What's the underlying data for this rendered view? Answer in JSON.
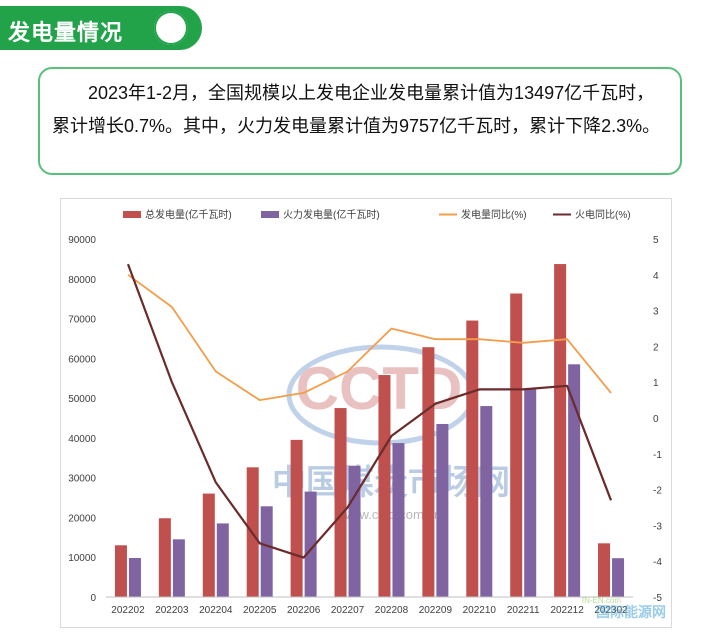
{
  "header": {
    "title": "发电量情况"
  },
  "summary": {
    "text": "2023年1-2月，全国规模以上发电企业发电量累计值为13497亿千瓦时，累计增长0.7%。其中，火力发电量累计值为9757亿千瓦时，累计下降2.3%。"
  },
  "watermark": {
    "logo": "CCTD",
    "cn": "中国煤炭市场网",
    "url": "www.cctd.com.cn",
    "corner": "国际能源网",
    "corner_en": "IN-EN.com"
  },
  "colors": {
    "total": "#c0504d",
    "thermal": "#8064a2",
    "gen_yoy": "#f29d4b",
    "thermal_yoy": "#6b2b2b",
    "green": "#22a34a"
  },
  "chart_data": {
    "type": "bar",
    "categories": [
      "202202",
      "202203",
      "202204",
      "202205",
      "202206",
      "202207",
      "202208",
      "202209",
      "202210",
      "202211",
      "202212",
      "202302"
    ],
    "series": [
      {
        "name": "总发电量(亿千瓦时)",
        "kind": "bar",
        "axis": "left",
        "values": [
          13000,
          19800,
          26000,
          32600,
          39500,
          47500,
          55800,
          62800,
          69500,
          76300,
          83700,
          13497
        ]
      },
      {
        "name": "火力发电量(亿千瓦时)",
        "kind": "bar",
        "axis": "left",
        "values": [
          9800,
          14500,
          18500,
          22800,
          26500,
          33000,
          38700,
          43500,
          48000,
          52500,
          58500,
          9757
        ]
      },
      {
        "name": "发电量同比(%)",
        "kind": "line",
        "axis": "right",
        "values": [
          4.0,
          3.1,
          1.3,
          0.5,
          0.7,
          1.3,
          2.5,
          2.2,
          2.2,
          2.1,
          2.2,
          0.7
        ]
      },
      {
        "name": "火电同比(%)",
        "kind": "line",
        "axis": "right",
        "values": [
          4.3,
          1.0,
          -1.8,
          -3.5,
          -3.9,
          -2.5,
          -0.5,
          0.4,
          0.8,
          0.8,
          0.9,
          -2.3
        ]
      }
    ],
    "ylim_left": [
      0,
      90000
    ],
    "yticks_left": [
      "90000",
      "80000",
      "70000",
      "60000",
      "50000",
      "40000",
      "30000",
      "20000",
      "10000",
      "0"
    ],
    "ylim_right": [
      -5,
      5
    ],
    "yticks_right": [
      "5",
      "4",
      "3",
      "2",
      "1",
      "0",
      "-1",
      "-2",
      "-3",
      "-4",
      "-5"
    ],
    "legend_position": "top",
    "grid": false
  }
}
